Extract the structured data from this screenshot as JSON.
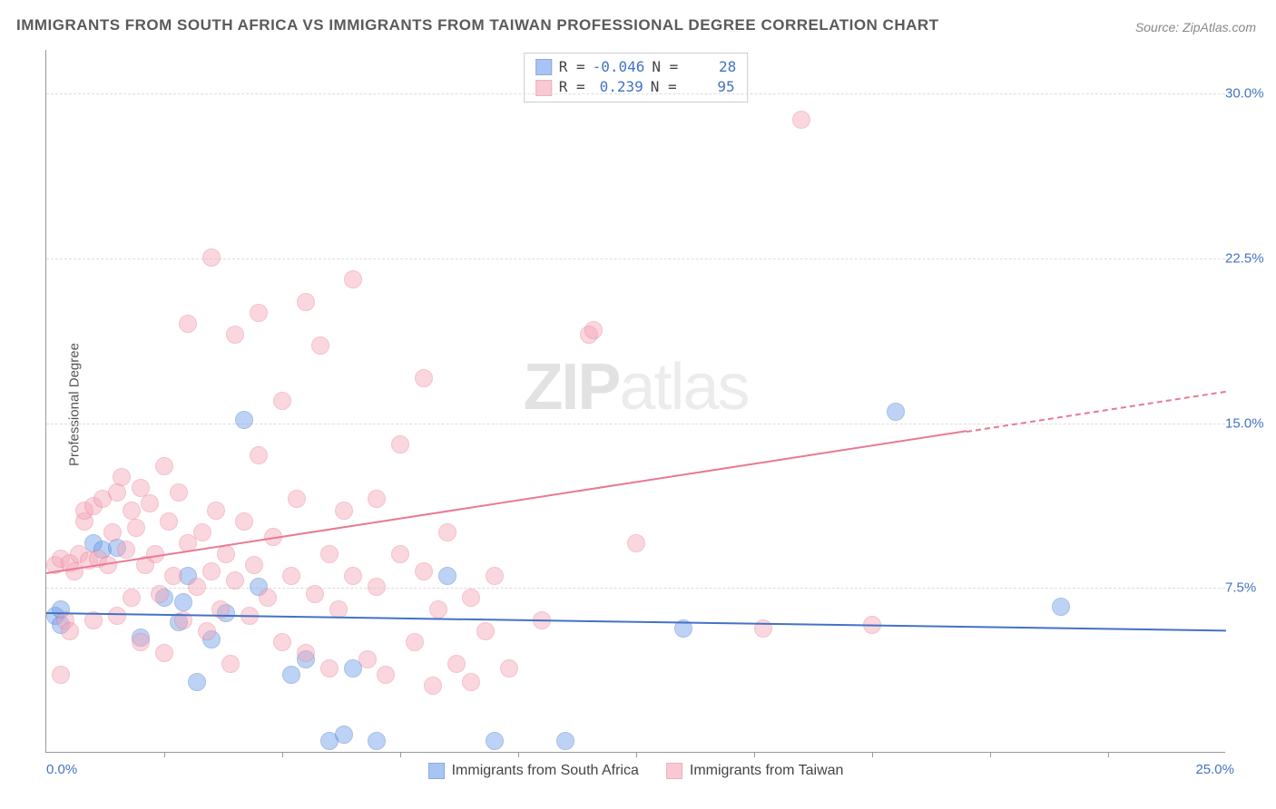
{
  "title": "IMMIGRANTS FROM SOUTH AFRICA VS IMMIGRANTS FROM TAIWAN PROFESSIONAL DEGREE CORRELATION CHART",
  "source": "Source: ZipAtlas.com",
  "ylabel": "Professional Degree",
  "watermark_bold": "ZIP",
  "watermark_light": "atlas",
  "chart": {
    "type": "scatter",
    "background_color": "#ffffff",
    "grid_color": "#dddddd",
    "axis_color": "#999999",
    "tick_color": "#4472c4",
    "xlim": [
      0,
      25
    ],
    "ylim": [
      0,
      32
    ],
    "xticks": [
      0,
      25
    ],
    "xtick_labels": [
      "0.0%",
      "25.0%"
    ],
    "xtick_minor": [
      2.5,
      5,
      7.5,
      10,
      12.5,
      15,
      17.5,
      20,
      22.5
    ],
    "yticks": [
      7.5,
      15,
      22.5,
      30
    ],
    "ytick_labels": [
      "7.5%",
      "15.0%",
      "22.5%",
      "30.0%"
    ],
    "marker_radius": 10,
    "marker_opacity": 0.45,
    "series": [
      {
        "name": "Immigrants from South Africa",
        "color": "#6d9eeb",
        "border": "#4472c4",
        "r_value": "-0.046",
        "n_value": "28",
        "trend": {
          "x1": 0,
          "y1": 6.4,
          "x2": 25,
          "y2": 5.6,
          "solid_until": 25
        },
        "points": [
          [
            0.2,
            6.2
          ],
          [
            0.3,
            5.8
          ],
          [
            0.3,
            6.5
          ],
          [
            1.0,
            9.5
          ],
          [
            1.2,
            9.2
          ],
          [
            1.5,
            9.3
          ],
          [
            2.0,
            5.2
          ],
          [
            2.5,
            7.0
          ],
          [
            2.8,
            5.9
          ],
          [
            2.9,
            6.8
          ],
          [
            3.0,
            8.0
          ],
          [
            3.2,
            3.2
          ],
          [
            3.5,
            5.1
          ],
          [
            3.8,
            6.3
          ],
          [
            4.2,
            15.1
          ],
          [
            4.5,
            7.5
          ],
          [
            5.2,
            3.5
          ],
          [
            5.5,
            4.2
          ],
          [
            6.0,
            0.5
          ],
          [
            6.3,
            0.8
          ],
          [
            6.5,
            3.8
          ],
          [
            7.0,
            0.5
          ],
          [
            8.5,
            8.0
          ],
          [
            9.5,
            0.5
          ],
          [
            11.0,
            0.5
          ],
          [
            13.5,
            5.6
          ],
          [
            18.0,
            15.5
          ],
          [
            21.5,
            6.6
          ]
        ]
      },
      {
        "name": "Immigrants from Taiwan",
        "color": "#f4a6b7",
        "border": "#e87a92",
        "r_value": "0.239",
        "n_value": "95",
        "trend": {
          "x1": 0,
          "y1": 8.2,
          "x2": 25,
          "y2": 16.5,
          "solid_until": 19.5
        },
        "points": [
          [
            0.2,
            8.5
          ],
          [
            0.3,
            3.5
          ],
          [
            0.3,
            8.8
          ],
          [
            0.4,
            6.0
          ],
          [
            0.5,
            8.6
          ],
          [
            0.5,
            5.5
          ],
          [
            0.6,
            8.2
          ],
          [
            0.7,
            9.0
          ],
          [
            0.8,
            10.5
          ],
          [
            0.8,
            11.0
          ],
          [
            0.9,
            8.7
          ],
          [
            1.0,
            6.0
          ],
          [
            1.0,
            11.2
          ],
          [
            1.1,
            8.8
          ],
          [
            1.2,
            11.5
          ],
          [
            1.3,
            8.5
          ],
          [
            1.4,
            10.0
          ],
          [
            1.5,
            11.8
          ],
          [
            1.5,
            6.2
          ],
          [
            1.6,
            12.5
          ],
          [
            1.7,
            9.2
          ],
          [
            1.8,
            11.0
          ],
          [
            1.8,
            7.0
          ],
          [
            1.9,
            10.2
          ],
          [
            2.0,
            12.0
          ],
          [
            2.0,
            5.0
          ],
          [
            2.1,
            8.5
          ],
          [
            2.2,
            11.3
          ],
          [
            2.3,
            9.0
          ],
          [
            2.4,
            7.2
          ],
          [
            2.5,
            13.0
          ],
          [
            2.5,
            4.5
          ],
          [
            2.6,
            10.5
          ],
          [
            2.7,
            8.0
          ],
          [
            2.8,
            11.8
          ],
          [
            2.9,
            6.0
          ],
          [
            3.0,
            9.5
          ],
          [
            3.0,
            19.5
          ],
          [
            3.2,
            7.5
          ],
          [
            3.3,
            10.0
          ],
          [
            3.4,
            5.5
          ],
          [
            3.5,
            22.5
          ],
          [
            3.5,
            8.2
          ],
          [
            3.6,
            11.0
          ],
          [
            3.7,
            6.5
          ],
          [
            3.8,
            9.0
          ],
          [
            3.9,
            4.0
          ],
          [
            4.0,
            7.8
          ],
          [
            4.0,
            19.0
          ],
          [
            4.2,
            10.5
          ],
          [
            4.3,
            6.2
          ],
          [
            4.4,
            8.5
          ],
          [
            4.5,
            20.0
          ],
          [
            4.5,
            13.5
          ],
          [
            4.7,
            7.0
          ],
          [
            4.8,
            9.8
          ],
          [
            5.0,
            16.0
          ],
          [
            5.0,
            5.0
          ],
          [
            5.2,
            8.0
          ],
          [
            5.3,
            11.5
          ],
          [
            5.5,
            20.5
          ],
          [
            5.5,
            4.5
          ],
          [
            5.7,
            7.2
          ],
          [
            5.8,
            18.5
          ],
          [
            6.0,
            9.0
          ],
          [
            6.0,
            3.8
          ],
          [
            6.2,
            6.5
          ],
          [
            6.3,
            11.0
          ],
          [
            6.5,
            21.5
          ],
          [
            6.5,
            8.0
          ],
          [
            6.8,
            4.2
          ],
          [
            7.0,
            7.5
          ],
          [
            7.0,
            11.5
          ],
          [
            7.2,
            3.5
          ],
          [
            7.5,
            9.0
          ],
          [
            7.5,
            14.0
          ],
          [
            7.8,
            5.0
          ],
          [
            8.0,
            8.2
          ],
          [
            8.0,
            17.0
          ],
          [
            8.2,
            3.0
          ],
          [
            8.3,
            6.5
          ],
          [
            8.5,
            10.0
          ],
          [
            8.7,
            4.0
          ],
          [
            9.0,
            7.0
          ],
          [
            9.0,
            3.2
          ],
          [
            9.3,
            5.5
          ],
          [
            9.5,
            8.0
          ],
          [
            9.8,
            3.8
          ],
          [
            10.5,
            6.0
          ],
          [
            11.5,
            19.0
          ],
          [
            11.6,
            19.2
          ],
          [
            12.5,
            9.5
          ],
          [
            15.2,
            5.6
          ],
          [
            16.0,
            28.8
          ],
          [
            17.5,
            5.8
          ]
        ]
      }
    ]
  },
  "stat_labels": {
    "r": "R =",
    "n": "N ="
  }
}
